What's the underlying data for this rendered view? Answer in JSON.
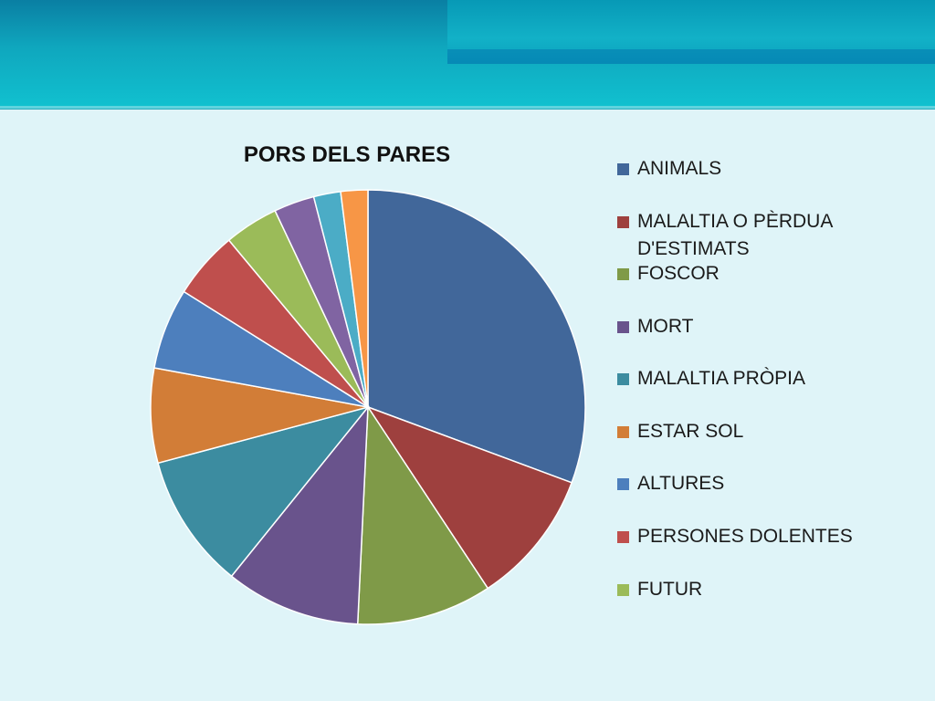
{
  "chart_data": {
    "type": "pie",
    "title": "PORS DELS PARES",
    "categories": [
      "ANIMALS",
      "MALALTIA O PÈRDUA D'ESTIMATS",
      "FOSCOR",
      "MORT",
      "MALALTIA PRÒPIA",
      "ESTAR SOL",
      "ALTURES",
      "PERSONES DOLENTES",
      "FUTUR",
      "",
      "",
      ""
    ],
    "values": [
      30.5,
      10,
      10,
      10,
      10,
      7,
      6,
      5,
      4,
      3,
      2,
      2
    ],
    "colors": [
      "#41679a",
      "#9e403e",
      "#7f9a48",
      "#69538c",
      "#3c8ca0",
      "#d27d37",
      "#4d7fbd",
      "#bf4f4d",
      "#9bbb59",
      "#8064a2",
      "#4bacc6",
      "#f79646"
    ],
    "legend_position": "right"
  }
}
